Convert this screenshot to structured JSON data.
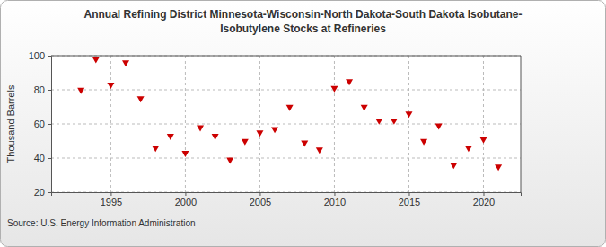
{
  "chart_data": {
    "type": "scatter",
    "title": "Annual Refining District Minnesota-Wisconsin-North Dakota-South Dakota Isobutane-\nIsobutylene Stocks at Refineries",
    "y_label": "Thousand Barrels",
    "source": "Source: U.S. Energy Information Administration",
    "x": [
      1993,
      1994,
      1995,
      1996,
      1997,
      1998,
      1999,
      2000,
      2001,
      2002,
      2003,
      2004,
      2005,
      2006,
      2007,
      2008,
      2009,
      2010,
      2011,
      2012,
      2013,
      2014,
      2015,
      2016,
      2017,
      2018,
      2019,
      2020,
      2021
    ],
    "values": [
      80,
      98,
      83,
      96,
      75,
      46,
      53,
      43,
      58,
      53,
      39,
      50,
      55,
      57,
      70,
      49,
      45,
      81,
      85,
      70,
      62,
      62,
      66,
      50,
      59,
      36,
      46,
      51,
      35
    ],
    "color": "#cc0000",
    "marker": "triangle-down",
    "xlim": [
      1991,
      2022.5
    ],
    "xticks": [
      1995,
      2000,
      2005,
      2010,
      2015,
      2020
    ],
    "ylim": [
      20,
      100
    ],
    "yticks": [
      20,
      40,
      60,
      80,
      100
    ],
    "grid": true
  }
}
